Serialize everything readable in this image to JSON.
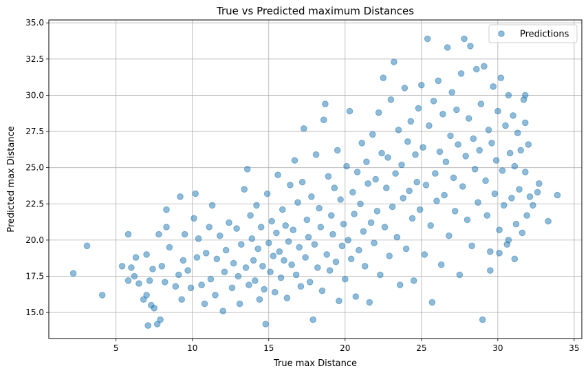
{
  "chart_data": {
    "type": "scatter",
    "title": "True vs Predicted maximum Distances",
    "xlabel": "True max Distance",
    "ylabel": "Predicted max Distance",
    "xlim": [
      0.6,
      35.5
    ],
    "ylim": [
      13.2,
      35.2
    ],
    "xticks": [
      5,
      10,
      15,
      20,
      25,
      30,
      35
    ],
    "yticks": [
      15.0,
      17.5,
      20.0,
      22.5,
      25.0,
      27.5,
      30.0,
      32.5,
      35.0
    ],
    "xtick_labels": [
      "5",
      "10",
      "15",
      "20",
      "25",
      "30",
      "35"
    ],
    "ytick_labels": [
      "15.0",
      "17.5",
      "20.0",
      "22.5",
      "25.0",
      "27.5",
      "30.0",
      "32.5",
      "35.0"
    ],
    "grid": true,
    "legend": {
      "position": "top-right",
      "entries": [
        "Predictions"
      ]
    },
    "series": [
      {
        "name": "Predictions",
        "color": "#1f77b4",
        "alpha": 0.5,
        "points": [
          [
            2.2,
            17.7
          ],
          [
            3.1,
            19.6
          ],
          [
            4.1,
            16.2
          ],
          [
            5.4,
            18.2
          ],
          [
            5.8,
            20.4
          ],
          [
            5.8,
            17.2
          ],
          [
            6.0,
            18.1
          ],
          [
            6.2,
            17.5
          ],
          [
            6.3,
            18.8
          ],
          [
            6.5,
            17.0
          ],
          [
            6.8,
            15.9
          ],
          [
            7.0,
            19.0
          ],
          [
            7.0,
            16.2
          ],
          [
            7.1,
            14.1
          ],
          [
            7.2,
            17.2
          ],
          [
            7.3,
            15.5
          ],
          [
            7.4,
            18.0
          ],
          [
            7.5,
            15.3
          ],
          [
            7.7,
            14.2
          ],
          [
            7.8,
            20.4
          ],
          [
            7.9,
            14.5
          ],
          [
            8.0,
            18.2
          ],
          [
            8.2,
            17.1
          ],
          [
            8.3,
            20.9
          ],
          [
            8.3,
            22.1
          ],
          [
            8.5,
            19.5
          ],
          [
            8.9,
            16.8
          ],
          [
            9.1,
            17.6
          ],
          [
            9.2,
            23.0
          ],
          [
            9.3,
            15.9
          ],
          [
            9.4,
            18.6
          ],
          [
            9.5,
            20.4
          ],
          [
            9.7,
            17.9
          ],
          [
            9.9,
            16.7
          ],
          [
            10.1,
            21.5
          ],
          [
            10.2,
            23.2
          ],
          [
            10.3,
            18.8
          ],
          [
            10.4,
            20.1
          ],
          [
            10.6,
            16.9
          ],
          [
            10.8,
            15.6
          ],
          [
            10.9,
            19.1
          ],
          [
            11.1,
            20.9
          ],
          [
            11.2,
            17.3
          ],
          [
            11.3,
            22.4
          ],
          [
            11.5,
            16.2
          ],
          [
            11.6,
            18.7
          ],
          [
            11.8,
            20.3
          ],
          [
            12.0,
            15.1
          ],
          [
            12.1,
            17.8
          ],
          [
            12.2,
            19.3
          ],
          [
            12.4,
            21.2
          ],
          [
            12.6,
            16.7
          ],
          [
            12.7,
            18.4
          ],
          [
            12.9,
            20.8
          ],
          [
            13.0,
            17.5
          ],
          [
            13.1,
            15.6
          ],
          [
            13.2,
            19.7
          ],
          [
            13.4,
            23.5
          ],
          [
            13.5,
            18.1
          ],
          [
            13.6,
            24.9
          ],
          [
            13.7,
            16.9
          ],
          [
            13.8,
            21.7
          ],
          [
            13.9,
            20.1
          ],
          [
            14.0,
            18.6
          ],
          [
            14.1,
            17.2
          ],
          [
            14.2,
            22.4
          ],
          [
            14.3,
            19.4
          ],
          [
            14.4,
            15.9
          ],
          [
            14.5,
            20.9
          ],
          [
            14.6,
            18.2
          ],
          [
            14.7,
            16.6
          ],
          [
            14.8,
            14.2
          ],
          [
            14.9,
            23.2
          ],
          [
            15.0,
            19.8
          ],
          [
            15.1,
            17.8
          ],
          [
            15.2,
            21.3
          ],
          [
            15.3,
            18.9
          ],
          [
            15.4,
            16.4
          ],
          [
            15.5,
            20.5
          ],
          [
            15.6,
            24.5
          ],
          [
            15.7,
            19.2
          ],
          [
            15.8,
            17.4
          ],
          [
            15.9,
            22.1
          ],
          [
            16.0,
            18.6
          ],
          [
            16.1,
            21.0
          ],
          [
            16.2,
            16.0
          ],
          [
            16.3,
            19.9
          ],
          [
            16.4,
            23.8
          ],
          [
            16.5,
            18.3
          ],
          [
            16.6,
            20.7
          ],
          [
            16.7,
            25.5
          ],
          [
            16.8,
            17.6
          ],
          [
            16.9,
            22.6
          ],
          [
            17.0,
            19.5
          ],
          [
            17.1,
            16.8
          ],
          [
            17.2,
            24.0
          ],
          [
            17.3,
            27.7
          ],
          [
            17.4,
            18.8
          ],
          [
            17.5,
            21.4
          ],
          [
            17.6,
            20.2
          ],
          [
            17.7,
            17.1
          ],
          [
            17.8,
            23.0
          ],
          [
            17.9,
            14.5
          ],
          [
            18.0,
            19.7
          ],
          [
            18.1,
            25.9
          ],
          [
            18.2,
            18.1
          ],
          [
            18.3,
            22.2
          ],
          [
            18.4,
            20.9
          ],
          [
            18.5,
            16.5
          ],
          [
            18.6,
            28.3
          ],
          [
            18.7,
            29.4
          ],
          [
            18.8,
            19.0
          ],
          [
            18.9,
            24.4
          ],
          [
            19.0,
            17.9
          ],
          [
            19.1,
            21.7
          ],
          [
            19.2,
            20.4
          ],
          [
            19.3,
            23.6
          ],
          [
            19.4,
            18.5
          ],
          [
            19.5,
            26.2
          ],
          [
            19.6,
            15.8
          ],
          [
            19.7,
            22.8
          ],
          [
            19.8,
            19.6
          ],
          [
            19.9,
            21.1
          ],
          [
            20.0,
            17.3
          ],
          [
            20.1,
            25.1
          ],
          [
            20.2,
            20.0
          ],
          [
            20.3,
            28.9
          ],
          [
            20.4,
            18.7
          ],
          [
            20.5,
            23.3
          ],
          [
            20.6,
            21.8
          ],
          [
            20.7,
            16.1
          ],
          [
            20.8,
            24.7
          ],
          [
            20.9,
            19.3
          ],
          [
            21.0,
            22.5
          ],
          [
            21.1,
            26.7
          ],
          [
            21.2,
            20.6
          ],
          [
            21.3,
            18.2
          ],
          [
            21.4,
            25.4
          ],
          [
            21.5,
            23.9
          ],
          [
            21.6,
            15.7
          ],
          [
            21.7,
            21.2
          ],
          [
            21.8,
            27.3
          ],
          [
            21.9,
            19.8
          ],
          [
            22.0,
            24.2
          ],
          [
            22.1,
            22.0
          ],
          [
            22.2,
            28.8
          ],
          [
            22.3,
            17.6
          ],
          [
            22.4,
            26.0
          ],
          [
            22.5,
            31.2
          ],
          [
            22.6,
            20.9
          ],
          [
            22.7,
            23.6
          ],
          [
            22.8,
            25.7
          ],
          [
            22.9,
            18.9
          ],
          [
            23.0,
            29.7
          ],
          [
            23.1,
            22.3
          ],
          [
            23.2,
            32.3
          ],
          [
            23.3,
            24.6
          ],
          [
            23.4,
            20.2
          ],
          [
            23.5,
            27.6
          ],
          [
            23.6,
            16.9
          ],
          [
            23.7,
            25.2
          ],
          [
            23.8,
            22.9
          ],
          [
            23.9,
            30.5
          ],
          [
            24.0,
            19.4
          ],
          [
            24.1,
            26.8
          ],
          [
            24.2,
            23.4
          ],
          [
            24.3,
            28.2
          ],
          [
            24.4,
            21.5
          ],
          [
            24.5,
            17.2
          ],
          [
            24.6,
            25.9
          ],
          [
            24.7,
            24.0
          ],
          [
            24.8,
            29.1
          ],
          [
            24.9,
            22.1
          ],
          [
            25.0,
            30.7
          ],
          [
            25.1,
            26.4
          ],
          [
            25.2,
            19.0
          ],
          [
            25.3,
            23.8
          ],
          [
            25.4,
            33.9
          ],
          [
            25.5,
            27.9
          ],
          [
            25.6,
            21.0
          ],
          [
            25.7,
            15.7
          ],
          [
            25.8,
            29.6
          ],
          [
            25.9,
            24.6
          ],
          [
            26.0,
            22.7
          ],
          [
            26.1,
            31.0
          ],
          [
            26.2,
            26.1
          ],
          [
            26.3,
            18.3
          ],
          [
            26.4,
            28.7
          ],
          [
            26.5,
            23.1
          ],
          [
            26.6,
            25.4
          ],
          [
            26.7,
            33.3
          ],
          [
            26.8,
            20.3
          ],
          [
            26.9,
            27.2
          ],
          [
            27.0,
            30.2
          ],
          [
            27.1,
            24.3
          ],
          [
            27.2,
            22.0
          ],
          [
            27.3,
            29.0
          ],
          [
            27.4,
            26.6
          ],
          [
            27.5,
            17.6
          ],
          [
            27.6,
            31.5
          ],
          [
            27.7,
            23.7
          ],
          [
            27.8,
            33.9
          ],
          [
            27.9,
            25.8
          ],
          [
            28.0,
            21.4
          ],
          [
            28.1,
            28.4
          ],
          [
            28.2,
            33.4
          ],
          [
            28.3,
            19.6
          ],
          [
            28.4,
            27.0
          ],
          [
            28.5,
            24.9
          ],
          [
            28.6,
            31.8
          ],
          [
            28.7,
            22.6
          ],
          [
            28.8,
            26.2
          ],
          [
            28.9,
            29.4
          ],
          [
            29.0,
            14.5
          ],
          [
            29.1,
            32.0
          ],
          [
            29.2,
            24.1
          ],
          [
            29.3,
            21.7
          ],
          [
            29.4,
            27.6
          ],
          [
            29.5,
            19.2
          ],
          [
            29.6,
            26.7
          ],
          [
            29.7,
            30.6
          ],
          [
            29.8,
            23.2
          ],
          [
            29.9,
            25.5
          ],
          [
            30.0,
            28.9
          ],
          [
            30.1,
            20.7
          ],
          [
            30.2,
            31.2
          ],
          [
            30.3,
            24.8
          ],
          [
            30.4,
            22.4
          ],
          [
            30.5,
            27.9
          ],
          [
            30.6,
            19.7
          ],
          [
            30.7,
            30.0
          ],
          [
            30.8,
            26.0
          ],
          [
            30.9,
            22.9
          ],
          [
            31.0,
            28.6
          ],
          [
            31.1,
            25.1
          ],
          [
            31.2,
            21.1
          ],
          [
            31.3,
            27.4
          ],
          [
            31.4,
            23.5
          ],
          [
            31.5,
            26.2
          ],
          [
            31.6,
            20.5
          ],
          [
            31.7,
            29.7
          ],
          [
            31.8,
            24.7
          ],
          [
            31.9,
            21.7
          ],
          [
            32.0,
            26.6
          ],
          [
            32.1,
            23.0
          ],
          [
            32.3,
            22.4
          ],
          [
            32.6,
            23.3
          ],
          [
            32.7,
            23.9
          ],
          [
            33.3,
            21.3
          ],
          [
            33.9,
            23.1
          ],
          [
            31.8,
            30.0
          ],
          [
            31.8,
            28.1
          ],
          [
            31.1,
            18.7
          ],
          [
            30.1,
            19.1
          ],
          [
            29.5,
            17.9
          ],
          [
            30.7,
            20.0
          ]
        ]
      }
    ]
  }
}
